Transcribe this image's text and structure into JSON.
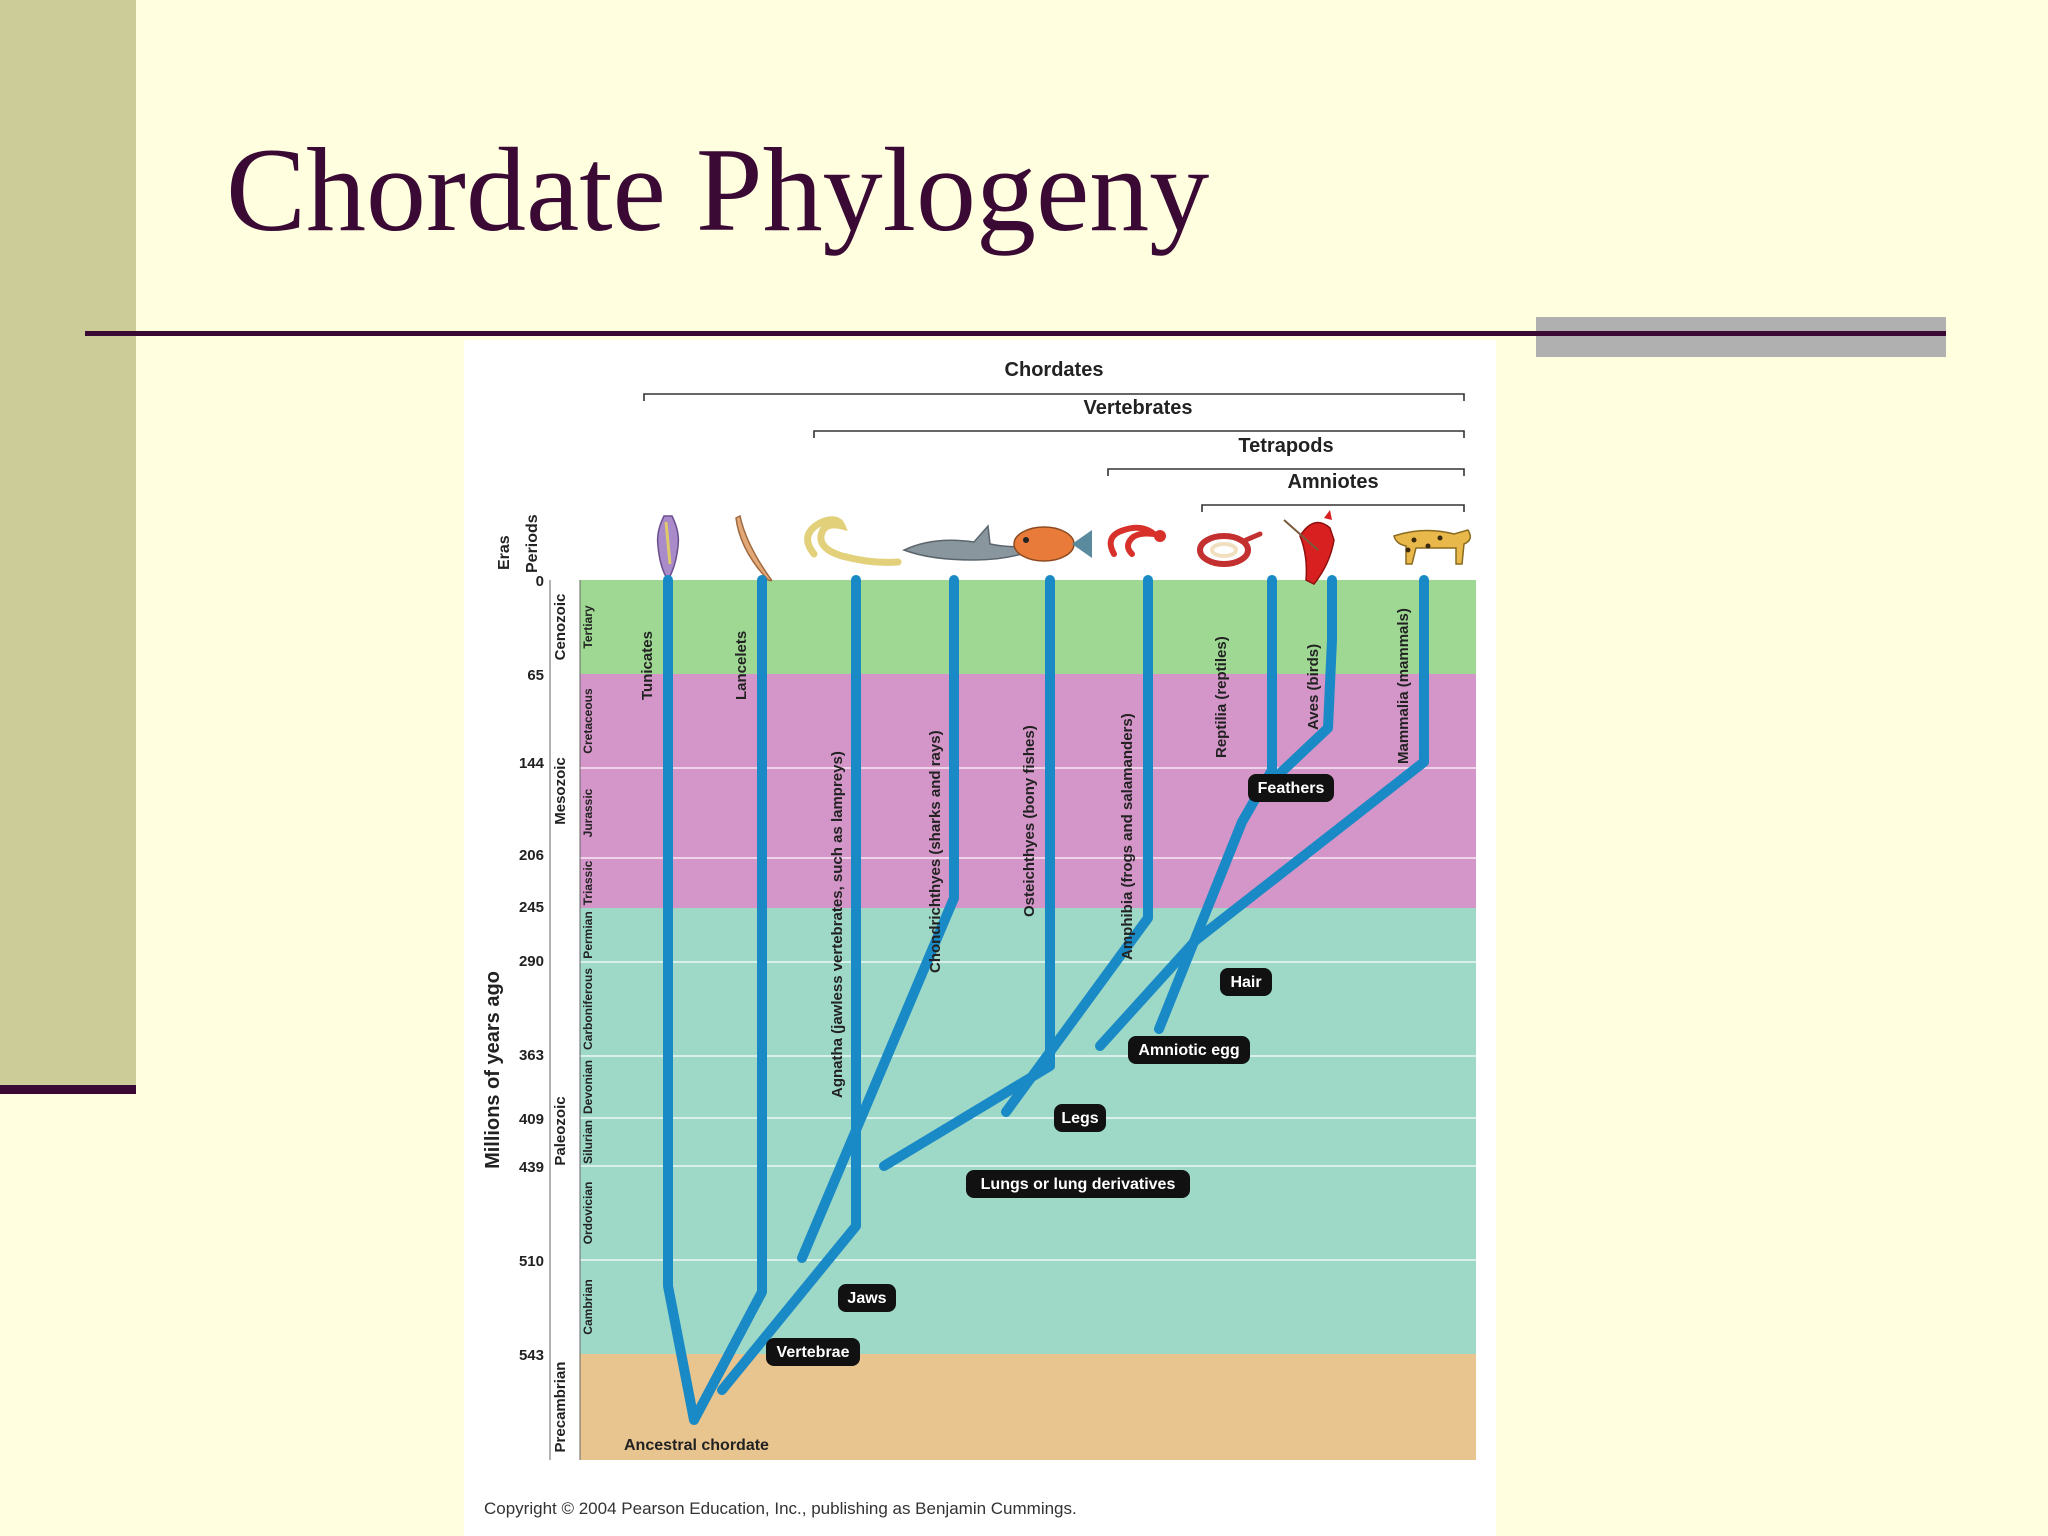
{
  "slide": {
    "title": "Chordate Phylogeny"
  },
  "colors": {
    "title": "#3a0a35",
    "sidebar": "#cccc99",
    "background": "#ffffe0",
    "branch": "#1a8ac6",
    "cenozoic": "#9ed893",
    "mesozoic": "#d495c8",
    "paleozoic": "#9ed9c8",
    "precambrian": "#e8c48e"
  },
  "figure": {
    "axis_label": "Millions of years ago",
    "col_eras": "Eras",
    "col_periods": "Periods",
    "ticks": [
      "0",
      "65",
      "144",
      "206",
      "245",
      "290",
      "363",
      "409",
      "439",
      "510",
      "543"
    ],
    "eras": [
      "Cenozoic",
      "Mesozoic",
      "Paleozoic",
      "Precambrian"
    ],
    "periods": [
      "Tertiary",
      "Cretaceous",
      "Jurassic",
      "Triassic",
      "Permian",
      "Carboniferous",
      "Devonian",
      "Silurian",
      "Ordovician",
      "Cambrian"
    ],
    "clades": [
      "Chordates",
      "Vertebrates",
      "Tetrapods",
      "Amniotes"
    ],
    "taxa": [
      "Tunicates",
      "Lancelets",
      "Agnatha (jawless vertebrates, such as lampreys)",
      "Chondrichthyes (sharks and rays)",
      "Osteichthyes (bony fishes)",
      "Amphibia (frogs and salamanders)",
      "Reptilia (reptiles)",
      "Aves (birds)",
      "Mammalia (mammals)"
    ],
    "animals": [
      "tunicate-icon",
      "lancelet-icon",
      "lamprey-icon",
      "shark-icon",
      "fish-icon",
      "salamander-icon",
      "snake-icon",
      "cardinal-icon",
      "jaguar-icon"
    ],
    "traits": [
      "Feathers",
      "Hair",
      "Amniotic egg",
      "Legs",
      "Lungs or lung derivatives",
      "Jaws",
      "Vertebrae"
    ],
    "root_label": "Ancestral chordate",
    "copyright": "Copyright © 2004 Pearson Education, Inc., publishing as Benjamin Cummings."
  }
}
